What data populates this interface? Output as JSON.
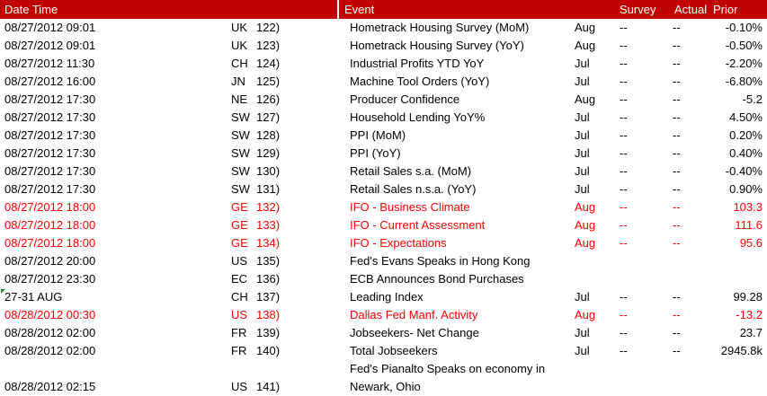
{
  "colors": {
    "header_bg": "#C00000",
    "highlight": "#FF0000",
    "text": "#000000",
    "marker_green": "#1E8A35"
  },
  "table": {
    "headers": {
      "date_time": "Date Time",
      "event": "Event",
      "survey": "Survey",
      "actual": "Actual",
      "prior": "Prior"
    },
    "rows": [
      {
        "date": "08/27/2012 09:01",
        "country": "UK",
        "num": "122)",
        "event": "Hometrack Housing Survey (MoM)",
        "month": "Aug",
        "survey": "--",
        "actual": "--",
        "prior": "-0.10%",
        "red": false,
        "marker": false,
        "tall": false
      },
      {
        "date": "08/27/2012 09:01",
        "country": "UK",
        "num": "123)",
        "event": "Hometrack Housing Survey (YoY)",
        "month": "Aug",
        "survey": "--",
        "actual": "--",
        "prior": "-0.50%",
        "red": false,
        "marker": false,
        "tall": false
      },
      {
        "date": "08/27/2012 11:30",
        "country": "CH",
        "num": "124)",
        "event": "Industrial Profits YTD YoY",
        "month": "Jul",
        "survey": "--",
        "actual": "--",
        "prior": "-2.20%",
        "red": false,
        "marker": false,
        "tall": false
      },
      {
        "date": "08/27/2012 16:00",
        "country": "JN",
        "num": "125)",
        "event": "Machine Tool Orders (YoY)",
        "month": "Jul",
        "survey": "--",
        "actual": "--",
        "prior": "-6.80%",
        "red": false,
        "marker": false,
        "tall": false
      },
      {
        "date": "08/27/2012 17:30",
        "country": "NE",
        "num": "126)",
        "event": "Producer Confidence",
        "month": "Aug",
        "survey": "--",
        "actual": "--",
        "prior": "-5.2",
        "red": false,
        "marker": false,
        "tall": false
      },
      {
        "date": "08/27/2012 17:30",
        "country": "SW",
        "num": "127)",
        "event": "Household Lending YoY%",
        "month": "Jul",
        "survey": "--",
        "actual": "--",
        "prior": "4.50%",
        "red": false,
        "marker": false,
        "tall": false
      },
      {
        "date": "08/27/2012 17:30",
        "country": "SW",
        "num": "128)",
        "event": "PPI (MoM)",
        "month": "Jul",
        "survey": "--",
        "actual": "--",
        "prior": "0.20%",
        "red": false,
        "marker": false,
        "tall": false
      },
      {
        "date": "08/27/2012 17:30",
        "country": "SW",
        "num": "129)",
        "event": "PPI (YoY)",
        "month": "Jul",
        "survey": "--",
        "actual": "--",
        "prior": "0.40%",
        "red": false,
        "marker": false,
        "tall": false
      },
      {
        "date": "08/27/2012 17:30",
        "country": "SW",
        "num": "130)",
        "event": "Retail Sales s.a. (MoM)",
        "month": "Jul",
        "survey": "--",
        "actual": "--",
        "prior": "-0.40%",
        "red": false,
        "marker": false,
        "tall": false
      },
      {
        "date": "08/27/2012 17:30",
        "country": "SW",
        "num": "131)",
        "event": "Retail Sales n.s.a. (YoY)",
        "month": "Jul",
        "survey": "--",
        "actual": "--",
        "prior": "0.90%",
        "red": false,
        "marker": false,
        "tall": false
      },
      {
        "date": "08/27/2012 18:00",
        "country": "GE",
        "num": "132)",
        "event": "IFO - Business Climate",
        "month": "Aug",
        "survey": "--",
        "actual": "--",
        "prior": "103.3",
        "red": true,
        "marker": false,
        "tall": false
      },
      {
        "date": "08/27/2012 18:00",
        "country": "GE",
        "num": "133)",
        "event": "IFO - Current Assessment",
        "month": "Aug",
        "survey": "--",
        "actual": "--",
        "prior": "111.6",
        "red": true,
        "marker": false,
        "tall": false
      },
      {
        "date": "08/27/2012 18:00",
        "country": "GE",
        "num": "134)",
        "event": "IFO - Expectations",
        "month": "Aug",
        "survey": "--",
        "actual": "--",
        "prior": "95.6",
        "red": true,
        "marker": false,
        "tall": false
      },
      {
        "date": "08/27/2012 20:00",
        "country": "US",
        "num": "135)",
        "event": "Fed's Evans Speaks in Hong Kong",
        "month": "",
        "survey": "",
        "actual": "",
        "prior": "",
        "red": false,
        "marker": false,
        "tall": false
      },
      {
        "date": "08/27/2012 23:30",
        "country": "EC",
        "num": "136)",
        "event": "ECB Announces Bond Purchases",
        "month": "",
        "survey": "",
        "actual": "",
        "prior": "",
        "red": false,
        "marker": false,
        "tall": false
      },
      {
        "date": "27-31 AUG",
        "country": "CH",
        "num": "137)",
        "event": "Leading Index",
        "month": "Jul",
        "survey": "--",
        "actual": "--",
        "prior": "99.28",
        "red": false,
        "marker": true,
        "tall": false
      },
      {
        "date": "08/28/2012 00:30",
        "country": "US",
        "num": "138)",
        "event": "Dallas Fed Manf. Activity",
        "month": "Aug",
        "survey": "--",
        "actual": "--",
        "prior": "-13.2",
        "red": true,
        "marker": false,
        "tall": false
      },
      {
        "date": "08/28/2012 02:00",
        "country": "FR",
        "num": "139)",
        "event": "Jobseekers- Net Change",
        "month": "Jul",
        "survey": "--",
        "actual": "--",
        "prior": "23.7",
        "red": false,
        "marker": false,
        "tall": false
      },
      {
        "date": "08/28/2012 02:00",
        "country": "FR",
        "num": "140)",
        "event": "Total Jobseekers",
        "month": "Jul",
        "survey": "--",
        "actual": "--",
        "prior": "2945.8k",
        "red": false,
        "marker": false,
        "tall": false
      },
      {
        "date": "08/28/2012 02:15",
        "country": "US",
        "num": "141)",
        "event": "Fed's Pianalto Speaks on economy in",
        "event_line2": "Newark, Ohio",
        "month": "",
        "survey": "",
        "actual": "",
        "prior": "",
        "red": false,
        "marker": false,
        "tall": true
      }
    ]
  }
}
